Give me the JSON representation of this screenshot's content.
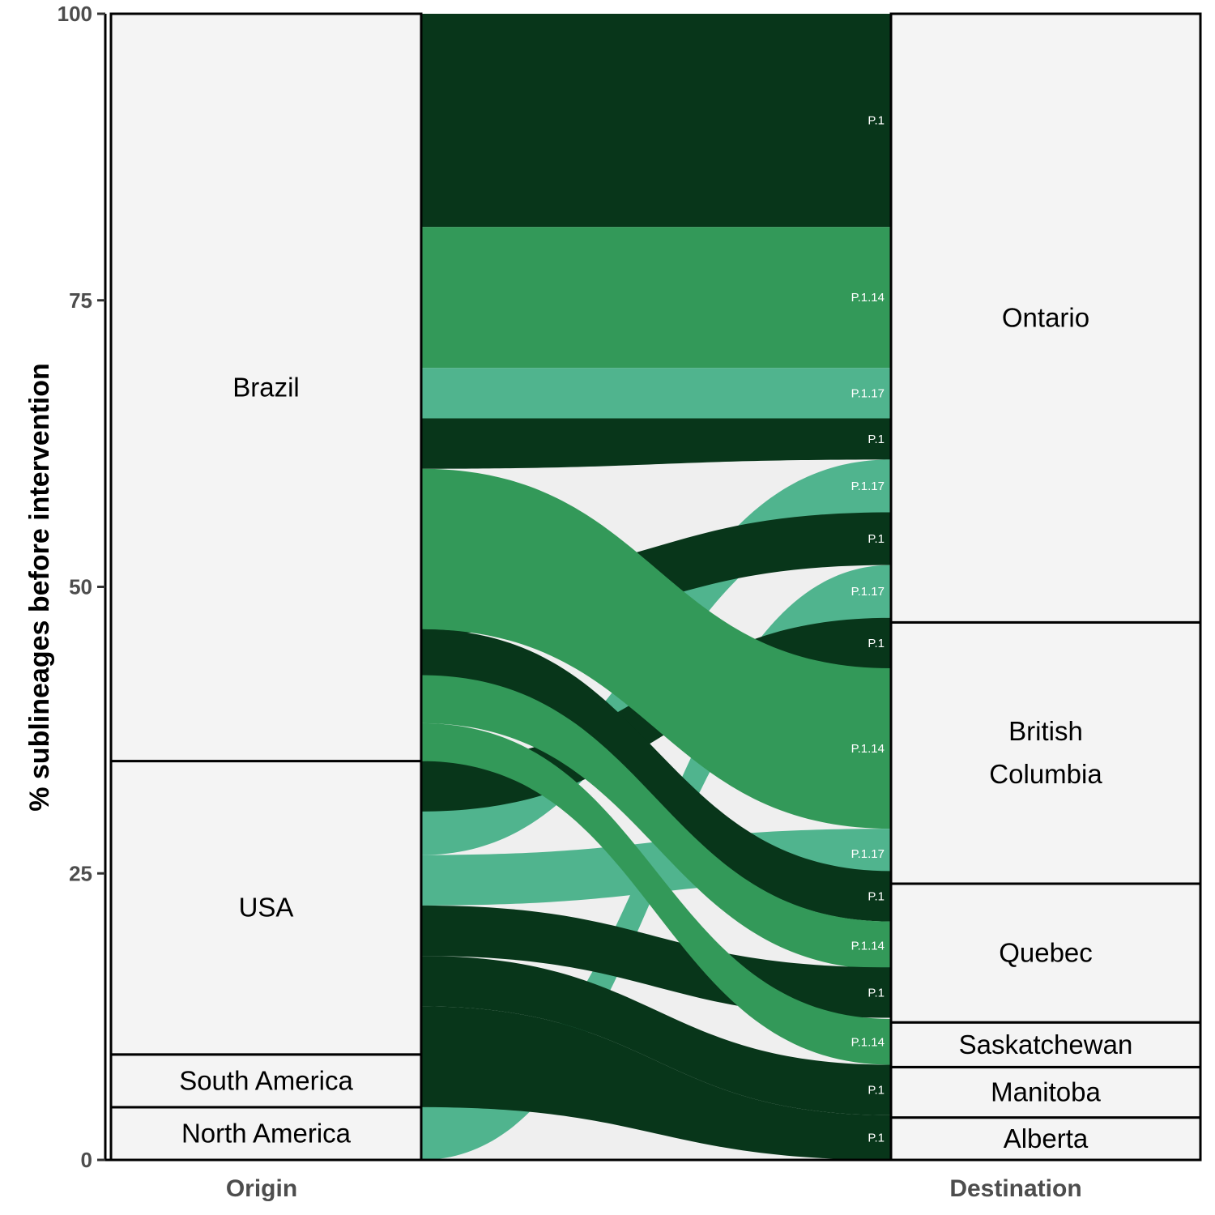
{
  "chart_data": {
    "type": "alluvial",
    "ylabel": "% sublineages before intervention",
    "xlabel": "",
    "ylim": [
      0,
      100
    ],
    "y_ticks": [
      0,
      25,
      50,
      75,
      100
    ],
    "axes": [
      "Origin",
      "Destination"
    ],
    "grid": false,
    "legend": "none",
    "origin_strata": [
      {
        "name": "North America",
        "start": 0,
        "end": 4.6
      },
      {
        "name": "South America",
        "start": 4.6,
        "end": 9.2
      },
      {
        "name": "USA",
        "start": 9.2,
        "end": 34.8
      },
      {
        "name": "Brazil",
        "start": 34.8,
        "end": 100
      }
    ],
    "destination_strata": [
      {
        "name": "Alberta",
        "start": 0,
        "end": 3.7
      },
      {
        "name": "Manitoba",
        "start": 3.7,
        "end": 8.1
      },
      {
        "name": "Saskatchewan",
        "start": 8.1,
        "end": 12.0
      },
      {
        "name": "Quebec",
        "start": 12.0,
        "end": 24.1
      },
      {
        "name": "British\nColumbia",
        "start": 24.1,
        "end": 46.9
      },
      {
        "name": "Ontario",
        "start": 46.9,
        "end": 100
      }
    ],
    "lineage_colors": {
      "P.1": "#08361a",
      "P.1.14": "#339959",
      "P.1.17": "#50b48e"
    },
    "flows": [
      {
        "lineage": "P.1",
        "origin": "Brazil",
        "destination": "Ontario",
        "value": 18.6,
        "origin_pos": [
          81.4,
          100
        ],
        "dest_pos": [
          81.4,
          100
        ],
        "label": "P.1"
      },
      {
        "lineage": "P.1.14",
        "origin": "Brazil",
        "destination": "Ontario",
        "value": 12.3,
        "origin_pos": [
          69.1,
          81.4
        ],
        "dest_pos": [
          69.1,
          81.4
        ],
        "label": "P.1.14"
      },
      {
        "lineage": "P.1.17",
        "origin": "Brazil",
        "destination": "Ontario",
        "value": 4.4,
        "origin_pos": [
          64.7,
          69.1
        ],
        "dest_pos": [
          64.7,
          69.1
        ],
        "label": "P.1.17"
      },
      {
        "lineage": "P.1",
        "origin": "Brazil",
        "destination": "Ontario",
        "value": 4.4,
        "origin_pos": [
          60.3,
          64.7
        ],
        "dest_pos": [
          61.1,
          64.7
        ],
        "label": "P.1"
      },
      {
        "lineage": "P.1.17",
        "origin": "USA",
        "destination": "Ontario",
        "value": 4.6,
        "origin_pos": [
          26.6,
          31.2
        ],
        "dest_pos": [
          56.5,
          61.1
        ],
        "label": "P.1.17"
      },
      {
        "lineage": "P.1",
        "origin": "Brazil",
        "destination": "Ontario",
        "value": 4.6,
        "origin_pos": [
          45.9,
          50.5
        ],
        "dest_pos": [
          51.9,
          56.5
        ],
        "label": "P.1"
      },
      {
        "lineage": "P.1.17",
        "origin": "North America",
        "destination": "Ontario",
        "value": 4.6,
        "origin_pos": [
          0,
          4.6
        ],
        "dest_pos": [
          47.3,
          51.9
        ],
        "label": "P.1.17"
      },
      {
        "lineage": "P.1",
        "origin": "USA",
        "destination": "British\nColumbia",
        "value": 4.4,
        "origin_pos": [
          30.4,
          34.8
        ],
        "dest_pos": [
          42.9,
          47.3
        ],
        "label": "P.1"
      },
      {
        "lineage": "P.1.14",
        "origin": "Brazil",
        "destination": "British\nColumbia",
        "value": 14.0,
        "origin_pos": [
          46.3,
          60.3
        ],
        "dest_pos": [
          28.9,
          42.9
        ],
        "label": "P.1.14"
      },
      {
        "lineage": "P.1.17",
        "origin": "USA",
        "destination": "British\nColumbia",
        "value": 4.4,
        "origin_pos": [
          22.2,
          26.6
        ],
        "dest_pos": [
          24.5,
          28.9
        ],
        "label": "P.1.17"
      },
      {
        "lineage": "P.1",
        "origin": "Brazil",
        "destination": "Quebec",
        "value": 4.4,
        "origin_pos": [
          41.9,
          46.3
        ],
        "dest_pos": [
          20.8,
          25.2
        ],
        "label": "P.1"
      },
      {
        "lineage": "P.1.14",
        "origin": "Brazil",
        "destination": "Quebec",
        "value": 4.2,
        "origin_pos": [
          38.1,
          42.3
        ],
        "dest_pos": [
          16.6,
          20.8
        ],
        "label": "P.1.14"
      },
      {
        "lineage": "P.1",
        "origin": "USA",
        "destination": "Quebec",
        "value": 4.4,
        "origin_pos": [
          17.8,
          22.2
        ],
        "dest_pos": [
          12.4,
          16.8
        ],
        "label": "P.1"
      },
      {
        "lineage": "P.1.14",
        "origin": "Brazil",
        "destination": "Saskatchewan",
        "value": 4.0,
        "origin_pos": [
          34.8,
          38.1
        ],
        "dest_pos": [
          8.3,
          12.3
        ],
        "label": "P.1.14"
      },
      {
        "lineage": "P.1",
        "origin": "USA",
        "destination": "Manitoba",
        "value": 4.4,
        "origin_pos": [
          13.4,
          17.8
        ],
        "dest_pos": [
          3.9,
          8.3
        ],
        "label": "P.1"
      },
      {
        "lineage": "P.1",
        "origin": "South America",
        "destination": "Alberta",
        "value": 8.8,
        "origin_pos": [
          4.6,
          13.4
        ],
        "dest_pos": [
          0,
          3.9
        ],
        "label": "P.1"
      }
    ]
  }
}
